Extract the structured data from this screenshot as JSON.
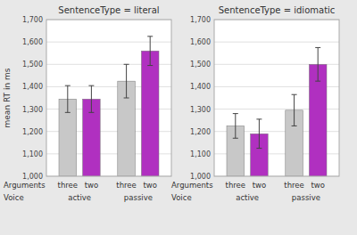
{
  "chart_data": [
    {
      "type": "bar",
      "title": "SentenceType = literal",
      "ylabel": "mean RT in ms",
      "categories": [
        "three",
        "two",
        "three",
        "two"
      ],
      "groups": [
        "active",
        "passive"
      ],
      "annotations": [
        "Arguments",
        "Voice"
      ],
      "values": [
        1345,
        1345,
        1425,
        1560
      ],
      "errors": [
        60,
        60,
        75,
        65
      ],
      "colors": [
        "#c8c8c8",
        "#b030c0",
        "#c8c8c8",
        "#b030c0"
      ],
      "ylim": [
        1000,
        1700
      ],
      "yticks": [
        {
          "value": 1000,
          "label": "1,000"
        },
        {
          "value": 1100,
          "label": "1,100"
        },
        {
          "value": 1200,
          "label": "1,200"
        },
        {
          "value": 1300,
          "label": "1,300"
        },
        {
          "value": 1400,
          "label": "1,400"
        },
        {
          "value": 1500,
          "label": "1,500"
        },
        {
          "value": 1600,
          "label": "1,600"
        },
        {
          "value": 1700,
          "label": "1,700"
        }
      ],
      "grid": true
    },
    {
      "type": "bar",
      "title": "SentenceType = idiomatic",
      "categories": [
        "three",
        "two",
        "three",
        "two"
      ],
      "groups": [
        "active",
        "passive"
      ],
      "annotations": [
        "Arguments",
        "Voice"
      ],
      "values": [
        1225,
        1190,
        1295,
        1500
      ],
      "errors": [
        55,
        65,
        70,
        75
      ],
      "colors": [
        "#c8c8c8",
        "#b030c0",
        "#c8c8c8",
        "#b030c0"
      ],
      "ylim": [
        1000,
        1700
      ],
      "yticks": [
        {
          "value": 1000,
          "label": "1,000"
        },
        {
          "value": 1100,
          "label": "1,100"
        },
        {
          "value": 1200,
          "label": "1,200"
        },
        {
          "value": 1300,
          "label": "1,300"
        },
        {
          "value": 1400,
          "label": "1,400"
        },
        {
          "value": 1500,
          "label": "1,500"
        },
        {
          "value": 1600,
          "label": "1,600"
        },
        {
          "value": 1700,
          "label": "1,700"
        }
      ],
      "grid": true
    }
  ]
}
